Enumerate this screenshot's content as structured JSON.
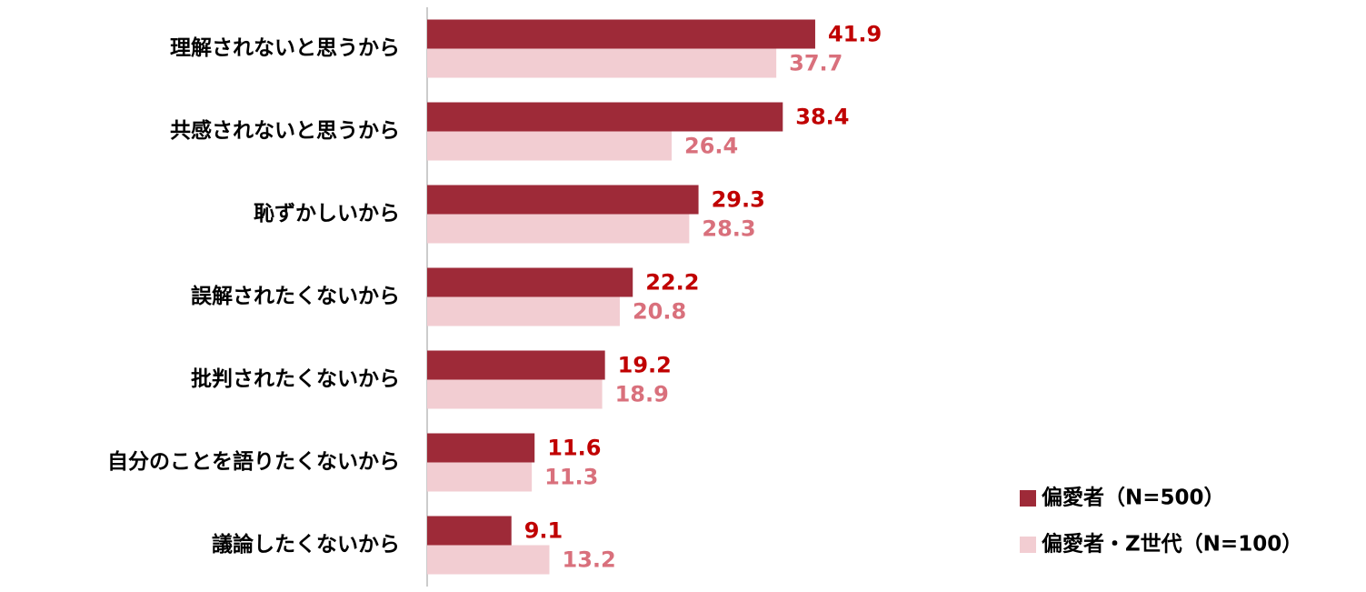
{
  "chart_data": {
    "type": "bar",
    "orientation": "horizontal",
    "categories": [
      "理解されないと思うから",
      "共感されないと思うから",
      "恥ずかしいから",
      "誤解されたくないから",
      "批判されたくないから",
      "自分のことを語りたくないから",
      "議論したくないから"
    ],
    "series": [
      {
        "name": "偏愛者（N=500）",
        "color": "#9e2a38",
        "label_color": "#c00000",
        "values": [
          41.9,
          38.4,
          29.3,
          22.2,
          19.2,
          11.6,
          9.1
        ]
      },
      {
        "name": "偏愛者・Z世代（N=100）",
        "color": "#f2cdd2",
        "label_color": "#d9707c",
        "values": [
          37.7,
          26.4,
          28.3,
          20.8,
          18.9,
          11.3,
          13.2
        ]
      }
    ],
    "legend": "bottom-right"
  }
}
